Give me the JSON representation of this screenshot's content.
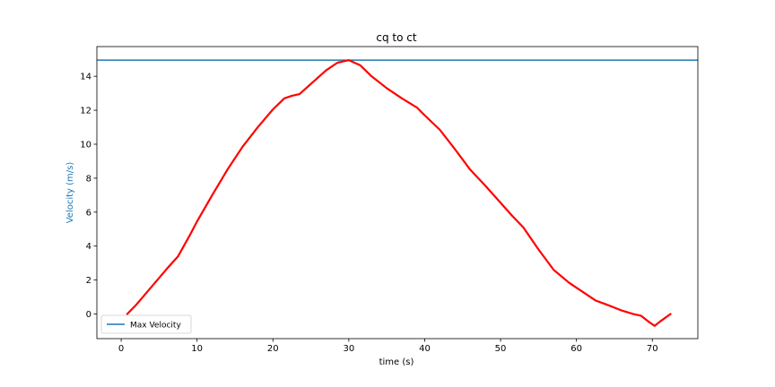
{
  "chart_data": {
    "type": "line",
    "title": "cq to ct",
    "xlabel": "time (s)",
    "ylabel": "Velocity (m/s)",
    "xlim": [
      -3.2,
      76.0
    ],
    "ylim": [
      -1.45,
      15.75
    ],
    "xticks": [
      0,
      10,
      20,
      30,
      40,
      50,
      60,
      70
    ],
    "yticks": [
      0,
      2,
      4,
      6,
      8,
      10,
      12,
      14
    ],
    "grid": false,
    "legend": {
      "position": "bottom-left",
      "entries": [
        "Max Velocity"
      ]
    },
    "series": [
      {
        "name": "Max Velocity",
        "kind": "hline",
        "color": "#1f77b4",
        "y": 14.95
      },
      {
        "color": "#ff0000",
        "x": [
          0.8,
          2,
          4,
          6,
          7.5,
          9,
          10,
          12,
          14,
          16,
          18,
          20,
          21.5,
          22.5,
          23.5,
          25,
          27,
          28.5,
          30,
          31.5,
          33,
          35,
          37,
          39,
          40,
          42,
          44,
          46,
          48,
          50,
          51.5,
          53,
          55,
          57,
          59,
          61,
          62.5,
          64,
          66,
          67.5,
          68.5,
          69.5,
          70.3,
          71,
          72.4
        ],
        "y": [
          0,
          0.55,
          1.6,
          2.65,
          3.4,
          4.6,
          5.45,
          7.0,
          8.5,
          9.85,
          11.0,
          12.05,
          12.7,
          12.85,
          12.95,
          13.55,
          14.35,
          14.8,
          14.95,
          14.65,
          14.0,
          13.3,
          12.7,
          12.15,
          11.7,
          10.85,
          9.7,
          8.5,
          7.55,
          6.55,
          5.8,
          5.1,
          3.8,
          2.6,
          1.85,
          1.25,
          0.8,
          0.55,
          0.2,
          0.0,
          -0.1,
          -0.45,
          -0.7,
          -0.45,
          0.0
        ]
      }
    ]
  }
}
